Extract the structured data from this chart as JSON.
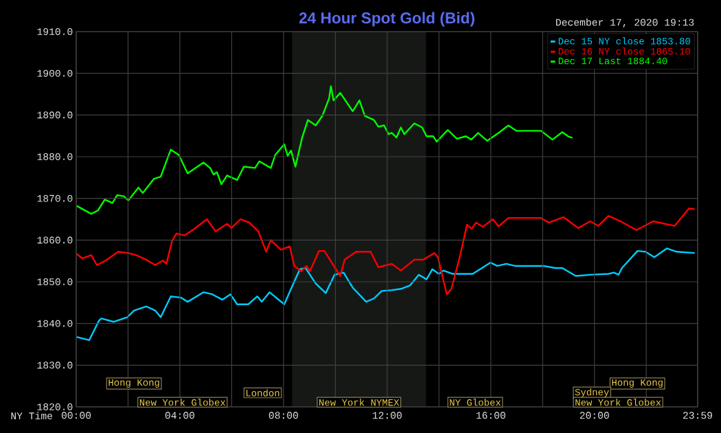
{
  "chart_data": {
    "type": "line",
    "title": "24 Hour Spot Gold (Bid)",
    "subtitle": "December 17, 2020 19:13",
    "xlabel": "NY Time",
    "xlim": [
      0,
      23.983
    ],
    "ylim": [
      1820,
      1910
    ],
    "xticks": [
      {
        "value": 0,
        "label": "00:00"
      },
      {
        "value": 2,
        "label": null
      },
      {
        "value": 4,
        "label": "04:00"
      },
      {
        "value": 6,
        "label": null
      },
      {
        "value": 8,
        "label": "08:00"
      },
      {
        "value": 10,
        "label": null
      },
      {
        "value": 12,
        "label": "12:00"
      },
      {
        "value": 14,
        "label": null
      },
      {
        "value": 16,
        "label": "16:00"
      },
      {
        "value": 18,
        "label": null
      },
      {
        "value": 20,
        "label": "20:00"
      },
      {
        "value": 22,
        "label": null
      },
      {
        "value": 23.983,
        "label": "23:59"
      }
    ],
    "yticks": [
      {
        "value": 1820,
        "label": "1820.0"
      },
      {
        "value": 1830,
        "label": "1830.0"
      },
      {
        "value": 1840,
        "label": "1840.0"
      },
      {
        "value": 1850,
        "label": "1850.0"
      },
      {
        "value": 1860,
        "label": "1860.0"
      },
      {
        "value": 1870,
        "label": "1870.0"
      },
      {
        "value": 1880,
        "label": "1880.0"
      },
      {
        "value": 1890,
        "label": "1890.0"
      },
      {
        "value": 1900,
        "label": "1900.0"
      },
      {
        "value": 1910,
        "label": "1910.0"
      }
    ],
    "grid": true,
    "legend": "top right",
    "bands": [
      {
        "axis": "x",
        "from": 8.33,
        "to": 13.5,
        "label": null,
        "color": "#161816"
      }
    ],
    "annotations": [
      "Hong Kong",
      "Hong Kong",
      "London",
      "Sydney",
      "New York Globex",
      "New York NYMEX",
      "NY Globex",
      "New York Globex"
    ],
    "series": [
      {
        "name": "Dec 15 NY close 1853.80",
        "color": "#00ccff",
        "x": [
          0.0,
          0.5,
          0.88,
          0.97,
          1.45,
          1.97,
          2.23,
          2.7,
          3.05,
          3.26,
          3.65,
          4.04,
          4.3,
          4.91,
          5.25,
          5.64,
          5.95,
          6.21,
          6.64,
          6.99,
          7.16,
          7.46,
          8.03,
          8.29,
          8.63,
          8.85,
          9.24,
          9.63,
          9.97,
          10.32,
          10.67,
          11.19,
          11.49,
          11.79,
          12.18,
          12.53,
          12.88,
          13.22,
          13.52,
          13.74,
          14.0,
          14.17,
          14.52,
          15.3,
          15.99,
          16.25,
          16.6,
          16.94,
          18.03,
          18.5,
          18.76,
          19.28,
          19.89,
          20.54,
          20.75,
          20.93,
          21.06,
          21.66,
          21.97,
          22.31,
          22.79,
          23.18,
          23.87
        ],
        "values": [
          1836.8,
          1836.0,
          1840.7,
          1841.2,
          1840.4,
          1841.5,
          1843.1,
          1844.1,
          1843.1,
          1841.5,
          1846.5,
          1846.2,
          1845.2,
          1847.5,
          1847.0,
          1845.7,
          1847.0,
          1844.6,
          1844.6,
          1846.5,
          1845.2,
          1847.5,
          1844.6,
          1848.3,
          1853.0,
          1853.3,
          1849.6,
          1847.3,
          1851.7,
          1852.2,
          1848.6,
          1845.2,
          1846.0,
          1847.8,
          1848.0,
          1848.3,
          1849.1,
          1851.7,
          1850.6,
          1853.0,
          1851.9,
          1852.7,
          1851.9,
          1851.9,
          1854.6,
          1853.8,
          1854.3,
          1853.8,
          1853.8,
          1853.3,
          1853.3,
          1851.4,
          1851.7,
          1851.9,
          1852.2,
          1851.7,
          1853.3,
          1857.4,
          1857.2,
          1855.9,
          1858.0,
          1857.2,
          1856.9
        ]
      },
      {
        "name": "Dec 16 NY close 1865.10",
        "color": "#ff0000",
        "x": [
          0.02,
          0.23,
          0.58,
          0.8,
          1.14,
          1.62,
          2.01,
          2.31,
          2.7,
          3.05,
          3.35,
          3.48,
          3.7,
          3.87,
          4.17,
          4.56,
          5.04,
          5.38,
          5.82,
          5.99,
          6.34,
          6.68,
          7.03,
          7.33,
          7.51,
          7.9,
          8.24,
          8.42,
          8.68,
          8.89,
          9.02,
          9.37,
          9.58,
          9.89,
          10.19,
          10.36,
          10.8,
          11.36,
          11.66,
          12.18,
          12.53,
          13.05,
          13.39,
          13.83,
          13.96,
          14.3,
          14.48,
          14.82,
          15.08,
          15.26,
          15.43,
          15.69,
          16.08,
          16.3,
          16.68,
          17.94,
          18.24,
          18.81,
          19.37,
          19.84,
          20.15,
          20.54,
          21.01,
          21.62,
          22.27,
          23.09,
          23.65,
          23.87
        ],
        "values": [
          1856.7,
          1855.6,
          1856.4,
          1854.0,
          1855.1,
          1857.2,
          1856.9,
          1856.4,
          1855.3,
          1854.0,
          1855.1,
          1854.3,
          1859.8,
          1861.6,
          1861.1,
          1862.7,
          1865.0,
          1862.1,
          1863.9,
          1862.9,
          1865.0,
          1864.2,
          1862.1,
          1857.2,
          1860.0,
          1857.7,
          1858.5,
          1853.8,
          1852.5,
          1853.8,
          1852.5,
          1857.4,
          1857.4,
          1854.3,
          1851.4,
          1855.3,
          1857.2,
          1857.2,
          1853.5,
          1854.3,
          1852.7,
          1855.3,
          1855.3,
          1856.9,
          1855.9,
          1847.0,
          1848.3,
          1856.4,
          1863.7,
          1862.7,
          1864.2,
          1863.2,
          1865.0,
          1863.3,
          1865.3,
          1865.3,
          1864.2,
          1865.5,
          1862.9,
          1864.5,
          1863.4,
          1865.8,
          1864.5,
          1862.4,
          1864.5,
          1863.4,
          1867.6,
          1867.4
        ]
      },
      {
        "name": "Dec 17 Last 1884.40",
        "color": "#00ff00",
        "x": [
          0.02,
          0.58,
          0.84,
          1.1,
          1.4,
          1.58,
          1.84,
          2.01,
          2.4,
          2.57,
          3.0,
          3.26,
          3.65,
          3.96,
          4.3,
          4.91,
          5.17,
          5.3,
          5.43,
          5.6,
          5.82,
          6.21,
          6.47,
          6.9,
          7.07,
          7.51,
          7.68,
          8.03,
          8.16,
          8.29,
          8.46,
          8.72,
          8.94,
          9.24,
          9.5,
          9.76,
          9.83,
          9.93,
          10.19,
          10.67,
          10.93,
          11.14,
          11.49,
          11.66,
          11.88,
          12.05,
          12.18,
          12.36,
          12.53,
          12.66,
          13.05,
          13.35,
          13.52,
          13.78,
          13.91,
          14.34,
          14.69,
          15.04,
          15.25,
          15.51,
          15.86,
          16.34,
          16.68,
          16.99,
          17.94,
          18.38,
          18.76,
          18.98,
          19.15
        ],
        "values": [
          1868.2,
          1866.3,
          1867.1,
          1869.7,
          1868.9,
          1870.8,
          1870.5,
          1869.5,
          1872.6,
          1871.3,
          1874.7,
          1875.2,
          1881.7,
          1880.4,
          1876.0,
          1878.6,
          1877.3,
          1875.7,
          1876.3,
          1873.4,
          1875.5,
          1874.4,
          1877.6,
          1877.3,
          1878.9,
          1877.3,
          1880.4,
          1883.0,
          1880.2,
          1881.5,
          1877.6,
          1884.6,
          1888.8,
          1887.5,
          1889.8,
          1894.0,
          1896.9,
          1893.5,
          1895.3,
          1890.9,
          1893.5,
          1889.8,
          1888.8,
          1887.2,
          1887.5,
          1885.4,
          1885.7,
          1884.6,
          1887.0,
          1885.4,
          1888.0,
          1887.0,
          1884.9,
          1884.9,
          1883.6,
          1886.4,
          1884.3,
          1884.9,
          1884.1,
          1885.7,
          1883.8,
          1885.9,
          1887.5,
          1886.2,
          1886.2,
          1884.1,
          1885.9,
          1884.9,
          1884.5
        ]
      }
    ]
  }
}
